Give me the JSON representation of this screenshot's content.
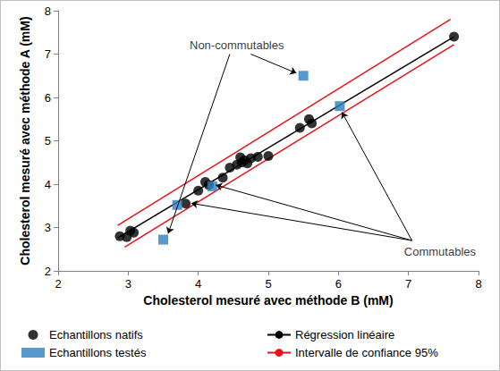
{
  "chart_data": {
    "type": "scatter",
    "x_label": "Cholesterol mesuré avec méthode B (mM)",
    "y_label": "Cholesterol mesuré avec méthode A (mM)",
    "xlim": [
      2,
      8
    ],
    "xticks": [
      2,
      3,
      4,
      5,
      6,
      7,
      8
    ],
    "ylim": [
      2,
      8
    ],
    "yticks": [
      2,
      3,
      4,
      5,
      6,
      7,
      8
    ],
    "grid": false,
    "legend": "bottom",
    "series": [
      {
        "name": "Echantillons natifs",
        "type": "scatter",
        "marker": "circle",
        "color": "#000000",
        "x": [
          2.88,
          2.98,
          3.03,
          3.08,
          3.82,
          4.0,
          4.1,
          4.15,
          4.35,
          4.45,
          4.55,
          4.6,
          4.62,
          4.66,
          4.7,
          4.75,
          4.85,
          5.0,
          5.45,
          5.58,
          5.62,
          7.65
        ],
        "values": [
          2.8,
          2.78,
          2.93,
          2.88,
          3.55,
          3.85,
          4.05,
          3.98,
          4.15,
          4.38,
          4.45,
          4.62,
          4.5,
          4.55,
          4.48,
          4.6,
          4.63,
          4.65,
          5.3,
          5.5,
          5.4,
          7.4
        ]
      },
      {
        "name": "Echantillons testés",
        "type": "scatter",
        "marker": "square",
        "color": "#2e7fc0",
        "x": [
          5.5,
          6.02,
          3.5,
          3.7,
          4.2
        ],
        "values": [
          6.5,
          5.8,
          2.72,
          3.52,
          3.95
        ]
      },
      {
        "name": "Régression linéaire",
        "type": "line",
        "color": "#000000",
        "x": [
          2.85,
          7.65
        ],
        "values": [
          2.76,
          7.4
        ]
      },
      {
        "name": "Intervalle de confiance 95%",
        "type": "line",
        "color": "#e8141a",
        "x": [
          2.85,
          7.6
        ],
        "values": [
          3.05,
          7.8
        ]
      },
      {
        "name": "Intervalle de confiance 95%",
        "type": "line",
        "color": "#e8141a",
        "x": [
          2.95,
          7.65
        ],
        "values": [
          2.55,
          7.22
        ]
      }
    ],
    "annotations": [
      {
        "text": "Non-commutables",
        "x": 4.55,
        "y": 7.2,
        "arrows": [
          [
            4.75,
            7.0,
            5.4,
            6.56
          ],
          [
            4.45,
            7.0,
            3.57,
            2.86
          ]
        ]
      },
      {
        "text": "Commutables",
        "x": 7.45,
        "y": 2.45,
        "arrows": [
          [
            7.05,
            2.7,
            6.05,
            5.66
          ],
          [
            7.05,
            2.7,
            4.25,
            3.98
          ],
          [
            7.05,
            2.7,
            3.9,
            3.56
          ]
        ]
      }
    ]
  }
}
